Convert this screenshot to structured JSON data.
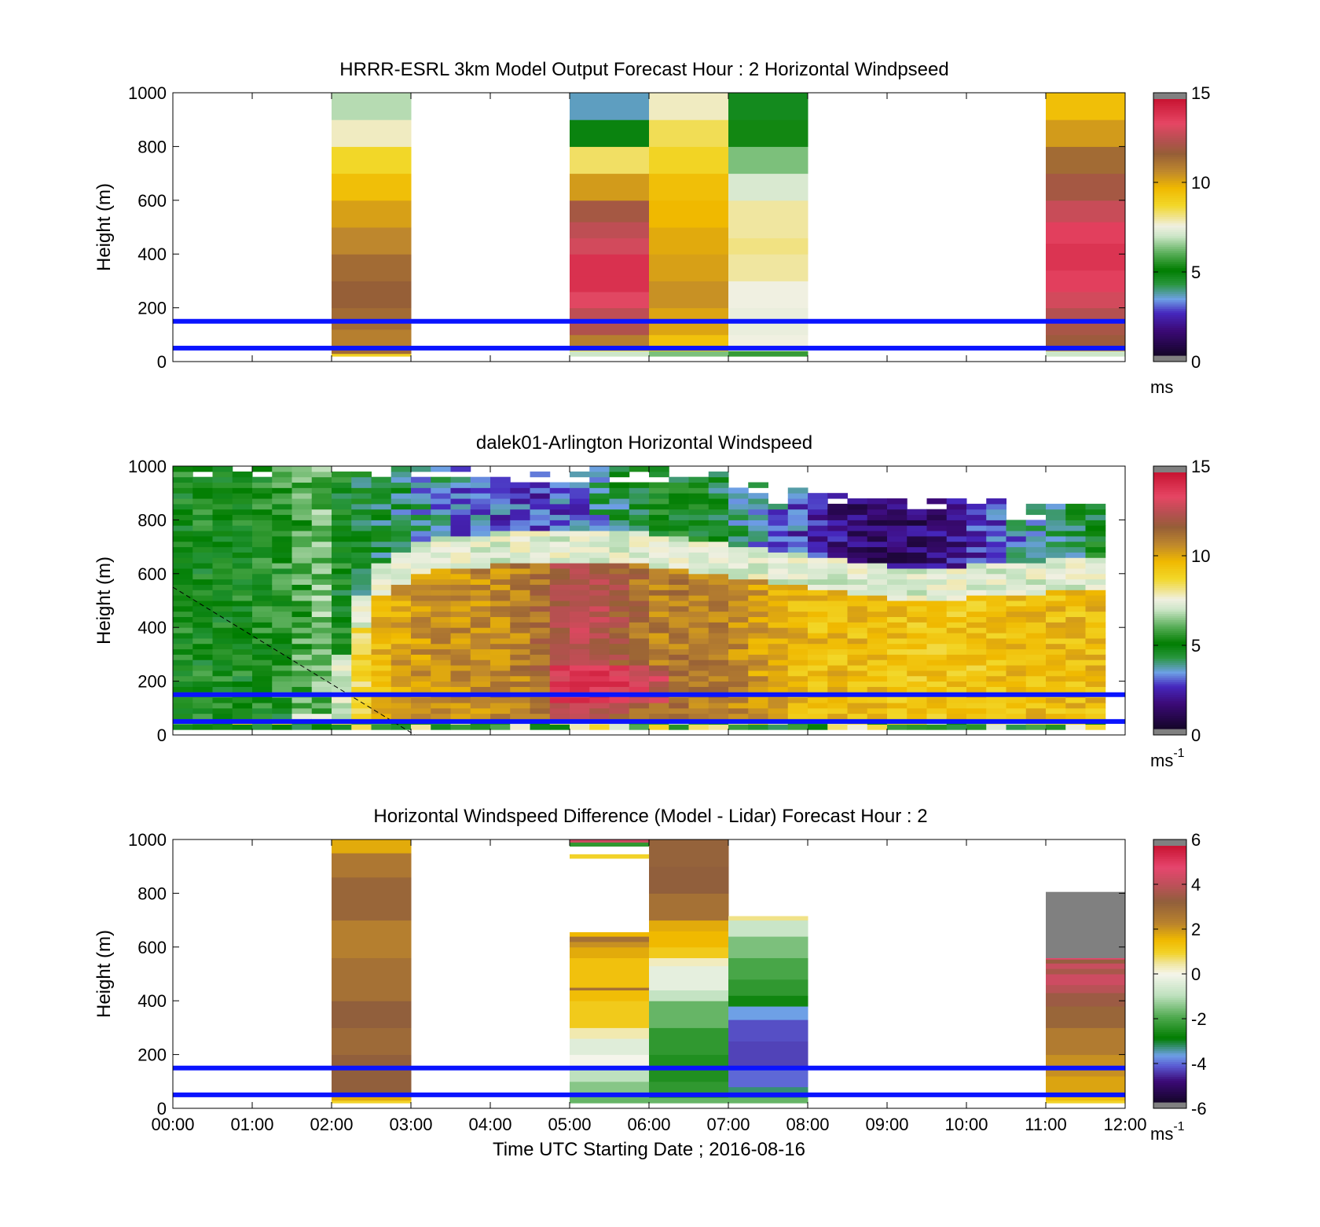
{
  "chart_data": [
    {
      "type": "heatmap",
      "title": "HRRR-ESRL 3km Model Output   Forecast Hour : 2 Horizontal Windpseed",
      "ylabel": "Height (m)",
      "ylim": [
        0,
        1000
      ],
      "yticks": [
        "0",
        "200",
        "400",
        "600",
        "800",
        "1000"
      ],
      "colorbar": {
        "min": 0,
        "max": 15,
        "ticks": [
          "0",
          "5",
          "10",
          "15"
        ],
        "unit": "ms"
      },
      "reference_lines_m": [
        50,
        150
      ],
      "columns": [
        {
          "hour": 2,
          "levels": [
            [
              20,
              30,
              9
            ],
            [
              30,
              60,
              11.5
            ],
            [
              60,
              120,
              11
            ],
            [
              120,
              200,
              11.5
            ],
            [
              200,
              300,
              11.8
            ],
            [
              300,
              400,
              11.5
            ],
            [
              400,
              500,
              10.8
            ],
            [
              500,
              600,
              10.3
            ],
            [
              600,
              700,
              9.6
            ],
            [
              700,
              800,
              8.8
            ],
            [
              800,
              900,
              7.8
            ],
            [
              900,
              1000,
              6.8
            ]
          ]
        },
        {
          "hour": 5,
          "levels": [
            [
              20,
              40,
              7
            ],
            [
              40,
              60,
              9
            ],
            [
              60,
              100,
              11
            ],
            [
              100,
              140,
              12.5
            ],
            [
              140,
              200,
              12.8
            ],
            [
              200,
              260,
              13.5
            ],
            [
              260,
              320,
              14.2
            ],
            [
              320,
              400,
              14.2
            ],
            [
              400,
              460,
              13.2
            ],
            [
              460,
              520,
              12.8
            ],
            [
              520,
              600,
              12.2
            ],
            [
              600,
              700,
              10.4
            ],
            [
              700,
              800,
              8.4
            ],
            [
              800,
              900,
              4.8
            ],
            [
              900,
              1000,
              3.5
            ]
          ]
        },
        {
          "hour": 6,
          "levels": [
            [
              20,
              40,
              6.3
            ],
            [
              40,
              100,
              9.5
            ],
            [
              100,
              200,
              10.2
            ],
            [
              200,
              300,
              10.6
            ],
            [
              300,
              400,
              10.3
            ],
            [
              400,
              500,
              10.1
            ],
            [
              500,
              600,
              9.8
            ],
            [
              600,
              700,
              9.6
            ],
            [
              700,
              800,
              8.9
            ],
            [
              800,
              900,
              8.5
            ],
            [
              900,
              1000,
              7.8
            ]
          ]
        },
        {
          "hour": 7,
          "levels": [
            [
              20,
              40,
              5.6
            ],
            [
              40,
              60,
              7.3
            ],
            [
              60,
              100,
              7.6
            ],
            [
              100,
              200,
              7.5
            ],
            [
              200,
              300,
              7.6
            ],
            [
              300,
              400,
              8
            ],
            [
              400,
              460,
              8.2
            ],
            [
              460,
              600,
              8
            ],
            [
              600,
              700,
              7.2
            ],
            [
              700,
              800,
              6.3
            ],
            [
              800,
              900,
              5.2
            ],
            [
              900,
              1000,
              4.6
            ]
          ]
        },
        {
          "hour": 11,
          "levels": [
            [
              20,
              40,
              7
            ],
            [
              40,
              60,
              11
            ],
            [
              60,
              100,
              12
            ],
            [
              100,
              140,
              12.3
            ],
            [
              140,
              200,
              12.6
            ],
            [
              200,
              260,
              13.2
            ],
            [
              260,
              340,
              13.8
            ],
            [
              340,
              440,
              14.1
            ],
            [
              440,
              520,
              13.8
            ],
            [
              520,
              600,
              13
            ],
            [
              600,
              700,
              12.2
            ],
            [
              700,
              800,
              11.5
            ],
            [
              800,
              900,
              10.4
            ],
            [
              900,
              1000,
              9.6
            ]
          ]
        }
      ]
    },
    {
      "type": "heatmap",
      "title": "dalek01-Arlington  Horizontal Windspeed",
      "ylabel": "Height (m)",
      "ylim": [
        0,
        1000
      ],
      "yticks": [
        "0",
        "200",
        "400",
        "600",
        "800",
        "1000"
      ],
      "colorbar": {
        "min": 0,
        "max": 15,
        "ticks": [
          "0",
          "5",
          "10",
          "15"
        ],
        "unit": "ms",
        "unit_exp": "-1"
      },
      "reference_lines_m": [
        50,
        150
      ],
      "time_step_min": 15,
      "profiles": {
        "times_h": [
          0,
          1,
          1.5,
          2,
          2.5,
          3,
          3.5,
          4,
          4.5,
          5,
          5.5,
          6,
          6.5,
          7,
          7.5,
          8,
          8.5,
          9,
          9.5,
          10,
          10.5,
          11,
          11.5,
          11.75
        ],
        "base_speed_ms": [
          5,
          5,
          5.5,
          6.5,
          9.5,
          10.5,
          10.6,
          10.8,
          11,
          12.6,
          12.5,
          11,
          11.2,
          11,
          10.2,
          9.6,
          9.6,
          9.5,
          9.3,
          9.3,
          9.5,
          9.6,
          9.6,
          9.6
        ],
        "top_height_m": [
          1000,
          1000,
          1000,
          1000,
          1000,
          1000,
          990,
          980,
          980,
          980,
          990,
          990,
          980,
          960,
          920,
          900,
          880,
          880,
          880,
          870,
          860,
          850,
          850,
          850
        ],
        "mixing_height_m": [
          0,
          0,
          0,
          120,
          560,
          640,
          670,
          680,
          690,
          700,
          700,
          680,
          660,
          640,
          620,
          600,
          580,
          560,
          560,
          560,
          570,
          580,
          590,
          600
        ],
        "aloft_speed_ms": [
          5,
          5,
          5,
          5,
          4.5,
          3.8,
          3.2,
          2.8,
          2.6,
          2.8,
          4,
          4.8,
          4.8,
          4.2,
          3.4,
          2.4,
          1.5,
          1.2,
          1.3,
          2,
          3,
          3.8,
          4.5,
          4.8
        ]
      }
    },
    {
      "type": "heatmap",
      "title": "Horizontal Windspeed Difference (Model - Lidar) Forecast Hour : 2",
      "ylabel": "Height (m)",
      "xlabel": "Time UTC  Starting Date ; 2016-08-16",
      "ylim": [
        0,
        1000
      ],
      "yticks": [
        "0",
        "200",
        "400",
        "600",
        "800",
        "1000"
      ],
      "xticks": [
        "00:00",
        "01:00",
        "02:00",
        "03:00",
        "04:00",
        "05:00",
        "06:00",
        "07:00",
        "08:00",
        "09:00",
        "10:00",
        "11:00",
        "12:00"
      ],
      "colorbar": {
        "min": -6,
        "max": 6,
        "ticks": [
          "-6",
          "-4",
          "-2",
          "0",
          "2",
          "4",
          "6"
        ],
        "unit": "ms",
        "unit_exp": "-1"
      },
      "reference_lines_m": [
        50,
        150
      ],
      "columns": [
        {
          "hour": 2,
          "levels": [
            [
              20,
              30,
              1
            ],
            [
              30,
              60,
              1.8
            ],
            [
              60,
              200,
              3.4
            ],
            [
              200,
              300,
              3.1
            ],
            [
              300,
              400,
              3.4
            ],
            [
              400,
              560,
              2.9
            ],
            [
              560,
              700,
              2.5
            ],
            [
              700,
              860,
              3.2
            ],
            [
              860,
              950,
              2.7
            ],
            [
              950,
              1000,
              1.8
            ]
          ]
        },
        {
          "hour": 5,
          "levels": [
            [
              20,
              60,
              -1.8
            ],
            [
              60,
              100,
              -1.5
            ],
            [
              100,
              150,
              -1
            ],
            [
              150,
              200,
              0
            ],
            [
              200,
              260,
              -0.4
            ],
            [
              260,
              300,
              0.4
            ],
            [
              300,
              400,
              1.2
            ],
            [
              400,
              440,
              1.5
            ],
            [
              440,
              450,
              2.9
            ],
            [
              450,
              560,
              1.4
            ],
            [
              560,
              600,
              1.8
            ],
            [
              600,
              620,
              2.2
            ],
            [
              620,
              640,
              2.9
            ],
            [
              640,
              655,
              1.6
            ],
            [
              930,
              945,
              1.0
            ],
            [
              975,
              990,
              -2.4
            ],
            [
              990,
              1000,
              4.5
            ]
          ]
        },
        {
          "hour": 6,
          "levels": [
            [
              20,
              40,
              -1.8
            ],
            [
              40,
              100,
              -2.4
            ],
            [
              100,
              200,
              -2.6
            ],
            [
              200,
              300,
              -2.4
            ],
            [
              300,
              400,
              -1.8
            ],
            [
              400,
              440,
              -0.9
            ],
            [
              440,
              530,
              -0.3
            ],
            [
              530,
              560,
              0.3
            ],
            [
              560,
              600,
              1.2
            ],
            [
              600,
              660,
              1.6
            ],
            [
              660,
              700,
              1.8
            ],
            [
              700,
              800,
              2.9
            ],
            [
              800,
              900,
              3.4
            ],
            [
              900,
              1000,
              3.3
            ]
          ]
        },
        {
          "hour": 7,
          "levels": [
            [
              20,
              40,
              -1.8
            ],
            [
              40,
              80,
              -3.4
            ],
            [
              80,
              150,
              -4.2
            ],
            [
              150,
              250,
              -4.5
            ],
            [
              250,
              330,
              -4.4
            ],
            [
              330,
              380,
              -3.8
            ],
            [
              380,
              420,
              -2.8
            ],
            [
              420,
              480,
              -2.4
            ],
            [
              480,
              560,
              -2.1
            ],
            [
              560,
              640,
              -1.6
            ],
            [
              640,
              700,
              -0.8
            ],
            [
              700,
              715,
              0.6
            ]
          ]
        },
        {
          "hour": 11,
          "levels": [
            [
              20,
              30,
              1
            ],
            [
              30,
              60,
              1.5
            ],
            [
              60,
              120,
              1.9
            ],
            [
              120,
              200,
              2.2
            ],
            [
              200,
              300,
              2.6
            ],
            [
              300,
              380,
              3.2
            ],
            [
              380,
              430,
              3.6
            ],
            [
              430,
              460,
              4.1
            ],
            [
              460,
              500,
              4.5
            ],
            [
              500,
              520,
              3.8
            ],
            [
              520,
              540,
              4.4
            ],
            [
              540,
              555,
              3.5
            ],
            [
              555,
              560,
              5.0
            ],
            [
              560,
              805,
              "masked"
            ]
          ]
        }
      ]
    }
  ]
}
